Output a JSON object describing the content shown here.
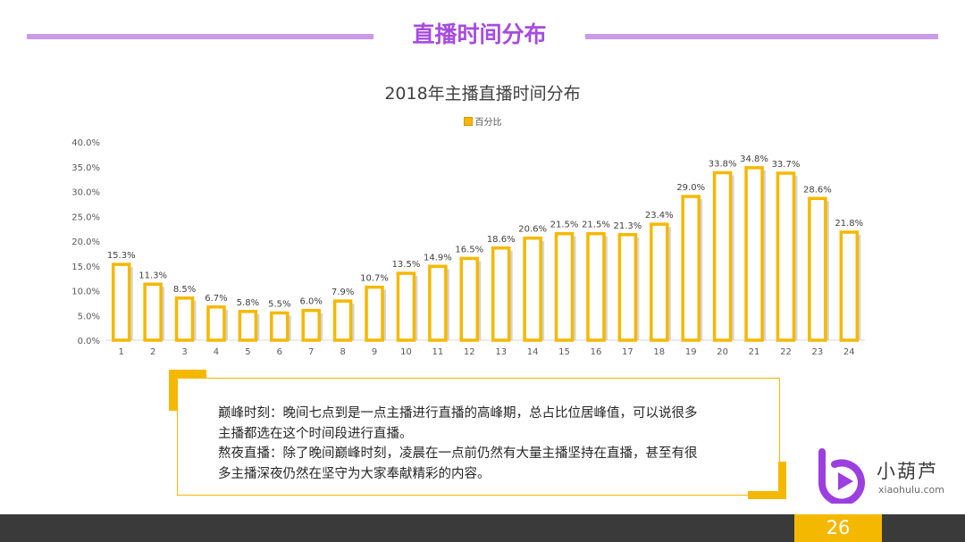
{
  "page_header": {
    "title": "直播时间分布"
  },
  "chart_data": {
    "type": "bar",
    "title": "2018年主播直播时间分布",
    "legend": [
      "百分比"
    ],
    "legend_position": "top-center",
    "categories": [
      "1",
      "2",
      "3",
      "4",
      "5",
      "6",
      "7",
      "8",
      "9",
      "10",
      "11",
      "12",
      "13",
      "14",
      "15",
      "16",
      "17",
      "18",
      "19",
      "20",
      "21",
      "22",
      "23",
      "24"
    ],
    "series": [
      {
        "name": "百分比",
        "values": [
          15.3,
          11.3,
          8.5,
          6.7,
          5.8,
          5.5,
          6.0,
          7.9,
          10.7,
          13.5,
          14.9,
          16.5,
          18.6,
          20.6,
          21.5,
          21.5,
          21.3,
          23.4,
          29.0,
          33.8,
          34.8,
          33.7,
          28.6,
          21.8
        ],
        "labels": [
          "15.3%",
          "11.3%",
          "8.5%",
          "6.7%",
          "5.8%",
          "5.5%",
          "6.0%",
          "7.9%",
          "10.7%",
          "13.5%",
          "14.9%",
          "16.5%",
          "18.6%",
          "20.6%",
          "21.5%",
          "21.5%",
          "21.3%",
          "23.4%",
          "29.0%",
          "33.8%",
          "34.8%",
          "33.7%",
          "28.6%",
          "21.8%"
        ]
      }
    ],
    "yticks": [
      "0.0%",
      "5.0%",
      "10.0%",
      "15.0%",
      "20.0%",
      "25.0%",
      "30.0%",
      "35.0%",
      "40.0%"
    ],
    "ylim": [
      0,
      40
    ],
    "grid": false,
    "colors": {
      "bar_border": "#f5b800",
      "bar_fill": "#ffffff",
      "axis_text": "#595959"
    }
  },
  "note": {
    "line1": "巅峰时刻：晚间七点到是一点主播进行直播的高峰期，总占比位居峰值，可以说很多",
    "line2": "主播都选在这个时间段进行直播。",
    "line3": "熬夜直播：除了晚间巅峰时刻，凌晨在一点前仍然有大量主播坚持在直播，甚至有很",
    "line4": "多主播深夜仍然在坚守为大家奉献精彩的内容。"
  },
  "brand": {
    "name": "小葫芦",
    "url": "xiaohulu.com",
    "icon": "xiaohulu-logo-icon"
  },
  "footer": {
    "page_number": "26"
  },
  "colors": {
    "accent_purple": "#a64be0",
    "accent_yellow": "#f5b800",
    "footer_dark": "#3a3a3a"
  }
}
